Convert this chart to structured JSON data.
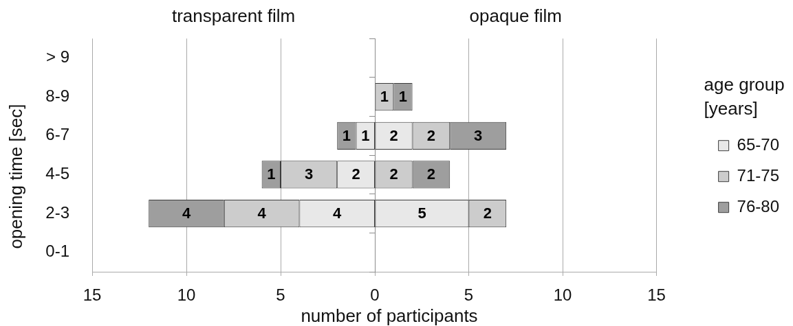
{
  "chart_data": [
    {
      "type": "bar",
      "orientation": "horizontal",
      "stacked": true,
      "title": "transparent film",
      "categories": [
        "> 9",
        "8-9",
        "6-7",
        "4-5",
        "2-3",
        "0-1"
      ],
      "xlabel": "number of participants",
      "ylabel": "opening time [sec]",
      "xlim": [
        15,
        0
      ],
      "xticks": [
        15,
        10,
        5
      ],
      "grid": "x",
      "data_labels": true,
      "series": [
        {
          "color": "#e8e8e8",
          "values": [
            null,
            null,
            1,
            2,
            4,
            null
          ]
        },
        {
          "color": "#cccccc",
          "values": [
            null,
            null,
            null,
            3,
            4,
            null
          ]
        },
        {
          "color": "#9e9e9e",
          "values": [
            null,
            null,
            1,
            1,
            4,
            null
          ]
        }
      ]
    },
    {
      "type": "bar",
      "orientation": "horizontal",
      "stacked": true,
      "title": "opaque film",
      "categories": [
        null,
        null,
        null,
        null,
        null,
        null
      ],
      "legend_title": "age group [years]",
      "xlim": [
        0,
        15
      ],
      "xticks": [
        0,
        5,
        10,
        15
      ],
      "grid": "x",
      "legend": "right",
      "data_labels": true,
      "series": [
        {
          "name": "65-70",
          "color": "#e8e8e8",
          "values": [
            null,
            null,
            2,
            null,
            5,
            null
          ]
        },
        {
          "name": "71-75",
          "color": "#cccccc",
          "values": [
            null,
            1,
            2,
            2,
            2,
            null
          ]
        },
        {
          "name": "76-80",
          "color": "#9e9e9e",
          "values": [
            null,
            1,
            3,
            2,
            null,
            null
          ]
        }
      ]
    }
  ]
}
